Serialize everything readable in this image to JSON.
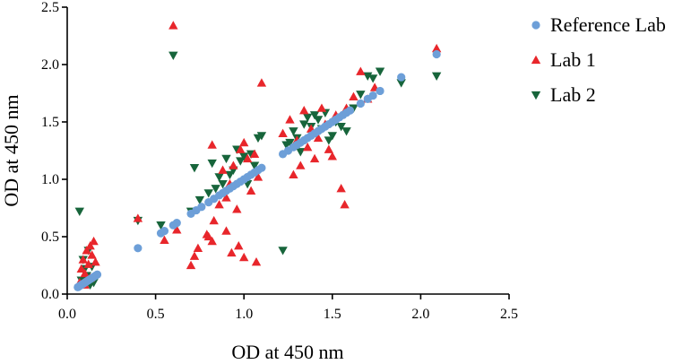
{
  "chart_data": {
    "type": "scatter",
    "xlabel": "OD at 450 nm",
    "ylabel": "OD at 450 nm",
    "xlim": [
      0,
      2.5
    ],
    "ylim": [
      0,
      2.5
    ],
    "xticks": [
      "0.0",
      "0.5",
      "1.0",
      "1.5",
      "2.0",
      "2.5"
    ],
    "yticks": [
      "0.0",
      "0.5",
      "1.0",
      "1.5",
      "2.0",
      "2.5"
    ],
    "grid": false,
    "legend_position": "top-right",
    "series": [
      {
        "name": "Reference Lab",
        "marker": "circle",
        "color": "#6d9fd8",
        "points": [
          [
            0.06,
            0.06
          ],
          [
            0.07,
            0.07
          ],
          [
            0.08,
            0.08
          ],
          [
            0.09,
            0.09
          ],
          [
            0.1,
            0.1
          ],
          [
            0.11,
            0.11
          ],
          [
            0.12,
            0.12
          ],
          [
            0.13,
            0.13
          ],
          [
            0.14,
            0.14
          ],
          [
            0.15,
            0.15
          ],
          [
            0.16,
            0.16
          ],
          [
            0.17,
            0.17
          ],
          [
            0.4,
            0.4
          ],
          [
            0.53,
            0.53
          ],
          [
            0.55,
            0.55
          ],
          [
            0.6,
            0.6
          ],
          [
            0.62,
            0.62
          ],
          [
            0.7,
            0.7
          ],
          [
            0.73,
            0.73
          ],
          [
            0.76,
            0.76
          ],
          [
            0.8,
            0.8
          ],
          [
            0.83,
            0.83
          ],
          [
            0.86,
            0.86
          ],
          [
            0.88,
            0.88
          ],
          [
            0.9,
            0.9
          ],
          [
            0.92,
            0.92
          ],
          [
            0.94,
            0.94
          ],
          [
            0.96,
            0.96
          ],
          [
            0.98,
            0.98
          ],
          [
            1.0,
            1.0
          ],
          [
            1.02,
            1.02
          ],
          [
            1.04,
            1.04
          ],
          [
            1.06,
            1.06
          ],
          [
            1.08,
            1.08
          ],
          [
            1.1,
            1.1
          ],
          [
            1.22,
            1.22
          ],
          [
            1.25,
            1.25
          ],
          [
            1.28,
            1.28
          ],
          [
            1.3,
            1.3
          ],
          [
            1.32,
            1.32
          ],
          [
            1.34,
            1.34
          ],
          [
            1.36,
            1.36
          ],
          [
            1.38,
            1.38
          ],
          [
            1.4,
            1.4
          ],
          [
            1.42,
            1.42
          ],
          [
            1.44,
            1.44
          ],
          [
            1.46,
            1.46
          ],
          [
            1.48,
            1.48
          ],
          [
            1.5,
            1.5
          ],
          [
            1.52,
            1.52
          ],
          [
            1.54,
            1.54
          ],
          [
            1.56,
            1.56
          ],
          [
            1.58,
            1.58
          ],
          [
            1.6,
            1.6
          ],
          [
            1.66,
            1.66
          ],
          [
            1.7,
            1.7
          ],
          [
            1.73,
            1.73
          ],
          [
            1.77,
            1.77
          ],
          [
            1.89,
            1.89
          ],
          [
            2.09,
            2.09
          ]
        ]
      },
      {
        "name": "Lab 1",
        "marker": "triangle-up",
        "color": "#e8262b",
        "points": [
          [
            0.07,
            0.1
          ],
          [
            0.08,
            0.22
          ],
          [
            0.09,
            0.3
          ],
          [
            0.1,
            0.18
          ],
          [
            0.11,
            0.38
          ],
          [
            0.12,
            0.26
          ],
          [
            0.13,
            0.42
          ],
          [
            0.14,
            0.34
          ],
          [
            0.15,
            0.46
          ],
          [
            0.16,
            0.28
          ],
          [
            0.1,
            0.08
          ],
          [
            0.13,
            0.14
          ],
          [
            0.4,
            0.66
          ],
          [
            0.6,
            2.34
          ],
          [
            0.55,
            0.47
          ],
          [
            0.62,
            0.56
          ],
          [
            0.7,
            0.25
          ],
          [
            0.72,
            0.33
          ],
          [
            0.74,
            0.4
          ],
          [
            0.79,
            0.52
          ],
          [
            0.8,
            0.5
          ],
          [
            0.82,
            0.46
          ],
          [
            0.83,
            0.64
          ],
          [
            0.82,
            1.3
          ],
          [
            0.86,
            0.78
          ],
          [
            0.88,
            1.08
          ],
          [
            0.9,
            0.84
          ],
          [
            0.92,
            0.96
          ],
          [
            0.94,
            1.12
          ],
          [
            0.96,
            0.74
          ],
          [
            0.98,
            1.26
          ],
          [
            1.0,
            1.32
          ],
          [
            1.02,
            1.18
          ],
          [
            1.04,
            0.9
          ],
          [
            1.06,
            1.22
          ],
          [
            1.08,
            1.02
          ],
          [
            1.1,
            1.84
          ],
          [
            1.07,
            0.28
          ],
          [
            0.9,
            0.55
          ],
          [
            0.97,
            0.42
          ],
          [
            1.0,
            0.32
          ],
          [
            0.93,
            0.36
          ],
          [
            1.22,
            1.4
          ],
          [
            1.26,
            1.52
          ],
          [
            1.28,
            1.04
          ],
          [
            1.3,
            1.34
          ],
          [
            1.32,
            1.12
          ],
          [
            1.34,
            1.6
          ],
          [
            1.36,
            1.28
          ],
          [
            1.38,
            1.44
          ],
          [
            1.4,
            1.18
          ],
          [
            1.42,
            1.36
          ],
          [
            1.44,
            1.62
          ],
          [
            1.46,
            1.48
          ],
          [
            1.48,
            1.26
          ],
          [
            1.5,
            1.2
          ],
          [
            1.52,
            1.56
          ],
          [
            1.55,
            0.92
          ],
          [
            1.57,
            0.78
          ],
          [
            1.58,
            1.62
          ],
          [
            1.62,
            1.72
          ],
          [
            1.66,
            1.94
          ],
          [
            1.7,
            1.7
          ],
          [
            1.74,
            1.8
          ],
          [
            2.09,
            2.14
          ]
        ]
      },
      {
        "name": "Lab 2",
        "marker": "triangle-down",
        "color": "#17653b",
        "points": [
          [
            0.07,
            0.72
          ],
          [
            0.08,
            0.12
          ],
          [
            0.09,
            0.3
          ],
          [
            0.1,
            0.22
          ],
          [
            0.11,
            0.16
          ],
          [
            0.12,
            0.38
          ],
          [
            0.13,
            0.08
          ],
          [
            0.14,
            0.24
          ],
          [
            0.15,
            0.1
          ],
          [
            0.16,
            0.14
          ],
          [
            0.4,
            0.64
          ],
          [
            0.53,
            0.6
          ],
          [
            0.6,
            2.08
          ],
          [
            0.7,
            0.72
          ],
          [
            0.72,
            1.1
          ],
          [
            0.75,
            0.82
          ],
          [
            0.8,
            0.88
          ],
          [
            0.82,
            1.14
          ],
          [
            0.84,
            0.92
          ],
          [
            0.86,
            1.02
          ],
          [
            0.88,
            0.96
          ],
          [
            0.9,
            1.18
          ],
          [
            0.92,
            1.04
          ],
          [
            0.94,
            1.08
          ],
          [
            0.96,
            1.26
          ],
          [
            0.98,
            1.16
          ],
          [
            1.0,
            1.2
          ],
          [
            1.02,
            0.96
          ],
          [
            1.04,
            1.22
          ],
          [
            1.06,
            1.12
          ],
          [
            1.08,
            1.36
          ],
          [
            1.1,
            1.38
          ],
          [
            1.22,
            0.38
          ],
          [
            1.24,
            1.3
          ],
          [
            1.26,
            1.32
          ],
          [
            1.28,
            1.42
          ],
          [
            1.3,
            1.36
          ],
          [
            1.32,
            1.24
          ],
          [
            1.34,
            1.48
          ],
          [
            1.36,
            1.54
          ],
          [
            1.38,
            1.46
          ],
          [
            1.4,
            1.56
          ],
          [
            1.42,
            1.52
          ],
          [
            1.44,
            1.44
          ],
          [
            1.46,
            1.58
          ],
          [
            1.48,
            1.34
          ],
          [
            1.5,
            1.38
          ],
          [
            1.52,
            1.5
          ],
          [
            1.55,
            1.46
          ],
          [
            1.58,
            1.42
          ],
          [
            1.62,
            1.62
          ],
          [
            1.66,
            1.74
          ],
          [
            1.7,
            1.9
          ],
          [
            1.73,
            1.88
          ],
          [
            1.77,
            1.94
          ],
          [
            1.89,
            1.84
          ],
          [
            2.09,
            1.9
          ]
        ]
      }
    ]
  }
}
